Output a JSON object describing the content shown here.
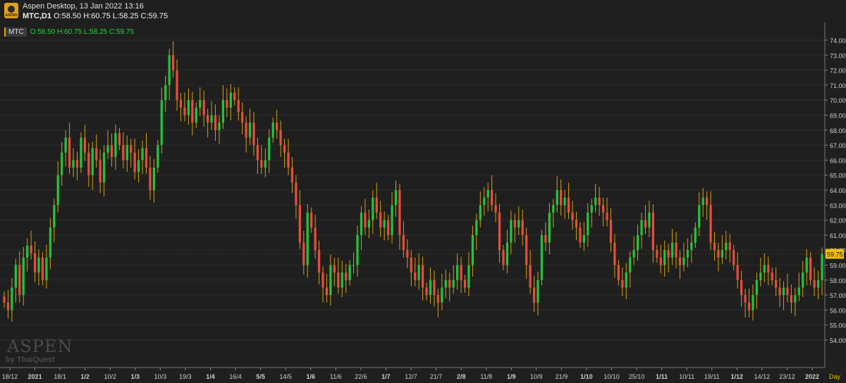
{
  "window": {
    "title": "Aspen Desktop, 13 Jan 2022 13:16",
    "symbol_line_symbol": "MTC,D1",
    "symbol_line_ohlc": "O:58.50 H:60.75 L:58.25 C:59.75",
    "logo_text": "ASPEN"
  },
  "legend": {
    "symbol": "MTC",
    "ohlc": "O:58.50 H:60.75 L:58.25 C:59.75"
  },
  "watermark": {
    "brand": "ASPEN",
    "byline": "by ThaiQuest"
  },
  "colors": {
    "background": "#1f1f1f",
    "up": "#22c33c",
    "down": "#e84c3d",
    "wick": "#d4a017",
    "grid": "#2c2c2c",
    "axis_text": "#cfcfcf",
    "last_price_bg": "#f0c000"
  },
  "chart_data": {
    "type": "candlestick",
    "symbol": "MTC",
    "timeframe": "D1",
    "ylim": [
      54,
      74.5
    ],
    "y_ticks": [
      "74.00",
      "73.00",
      "72.00",
      "71.00",
      "70.00",
      "69.00",
      "68.00",
      "67.00",
      "66.00",
      "65.00",
      "64.00",
      "63.00",
      "62.00",
      "61.00",
      "60.00",
      "59.00",
      "58.00",
      "57.00",
      "56.00",
      "55.00",
      "54.00"
    ],
    "last_price": "59.75",
    "x_axis_unit_label": "Day",
    "x_ticks": [
      {
        "label": "18/12",
        "bold": false
      },
      {
        "label": "2021",
        "bold": true
      },
      {
        "label": "18/1",
        "bold": false
      },
      {
        "label": "1/2",
        "bold": true
      },
      {
        "label": "10/2",
        "bold": false
      },
      {
        "label": "1/3",
        "bold": true
      },
      {
        "label": "10/3",
        "bold": false
      },
      {
        "label": "19/3",
        "bold": false
      },
      {
        "label": "1/4",
        "bold": true
      },
      {
        "label": "16/4",
        "bold": false
      },
      {
        "label": "5/5",
        "bold": true
      },
      {
        "label": "14/5",
        "bold": false
      },
      {
        "label": "1/6",
        "bold": true
      },
      {
        "label": "11/6",
        "bold": false
      },
      {
        "label": "22/6",
        "bold": false
      },
      {
        "label": "1/7",
        "bold": true
      },
      {
        "label": "12/7",
        "bold": false
      },
      {
        "label": "21/7",
        "bold": false
      },
      {
        "label": "2/8",
        "bold": true
      },
      {
        "label": "11/8",
        "bold": false
      },
      {
        "label": "1/9",
        "bold": true
      },
      {
        "label": "10/9",
        "bold": false
      },
      {
        "label": "21/9",
        "bold": false
      },
      {
        "label": "1/10",
        "bold": true
      },
      {
        "label": "10/10",
        "bold": false
      },
      {
        "label": "25/10",
        "bold": false
      },
      {
        "label": "1/11",
        "bold": true
      },
      {
        "label": "10/11",
        "bold": false
      },
      {
        "label": "19/11",
        "bold": false
      },
      {
        "label": "1/12",
        "bold": true
      },
      {
        "label": "14/12",
        "bold": false
      },
      {
        "label": "23/12",
        "bold": false
      },
      {
        "label": "2022",
        "bold": true
      }
    ],
    "series_close": [
      56.5,
      56.0,
      57.5,
      59.0,
      57.0,
      59.5,
      60.3,
      59.8,
      58.5,
      59.5,
      58.0,
      59.5,
      61.5,
      63.0,
      65.0,
      66.5,
      67.5,
      65.5,
      66.0,
      65.5,
      67.5,
      66.5,
      65.0,
      66.8,
      66.0,
      64.5,
      66.5,
      67.0,
      66.2,
      67.8,
      67.0,
      66.0,
      67.0,
      66.5,
      65.2,
      66.0,
      66.8,
      65.5,
      64.0,
      65.5,
      67.0,
      70.0,
      71.0,
      73.0,
      72.0,
      70.0,
      69.5,
      69.0,
      70.0,
      68.5,
      69.5,
      70.0,
      69.0,
      68.5,
      69.0,
      68.0,
      68.5,
      70.0,
      69.5,
      70.5,
      70.0,
      69.2,
      68.5,
      67.5,
      68.5,
      67.0,
      66.0,
      65.5,
      66.0,
      67.5,
      68.5,
      68.0,
      67.0,
      66.5,
      65.5,
      64.5,
      63.0,
      60.5,
      59.0,
      62.5,
      61.5,
      60.0,
      58.5,
      57.5,
      57.0,
      59.0,
      58.5,
      57.5,
      58.5,
      58.0,
      59.0,
      59.0,
      61.0,
      62.5,
      61.5,
      62.0,
      63.5,
      62.5,
      61.5,
      62.0,
      61.0,
      63.0,
      64.0,
      61.0,
      60.0,
      59.5,
      58.5,
      58.0,
      59.0,
      57.5,
      57.0,
      58.0,
      57.0,
      56.5,
      57.5,
      58.0,
      57.5,
      58.0,
      59.0,
      58.0,
      57.5,
      59.0,
      61.0,
      62.0,
      63.0,
      63.5,
      64.0,
      63.0,
      62.5,
      60.0,
      59.0,
      60.5,
      62.0,
      61.5,
      62.0,
      61.0,
      59.0,
      57.5,
      56.5,
      58.0,
      61.0,
      60.5,
      62.5,
      63.0,
      64.0,
      63.0,
      63.5,
      62.5,
      62.0,
      61.5,
      60.5,
      61.0,
      62.5,
      63.0,
      63.5,
      63.0,
      62.5,
      62.0,
      60.5,
      59.0,
      58.0,
      57.5,
      58.5,
      59.5,
      60.0,
      61.0,
      62.0,
      61.5,
      62.5,
      60.0,
      59.5,
      59.0,
      60.0,
      59.5,
      60.5,
      59.5,
      59.0,
      59.5,
      60.0,
      60.5,
      61.5,
      63.0,
      63.5,
      63.0,
      60.5,
      60.0,
      59.5,
      60.0,
      60.5,
      60.0,
      59.0,
      58.0,
      57.0,
      56.5,
      56.0,
      57.0,
      58.0,
      58.5,
      59.0,
      58.5,
      58.0,
      57.5,
      57.0,
      57.5,
      57.0,
      56.5,
      57.0,
      57.5,
      58.5,
      59.5,
      58.0,
      57.5,
      58.0,
      59.75
    ]
  }
}
